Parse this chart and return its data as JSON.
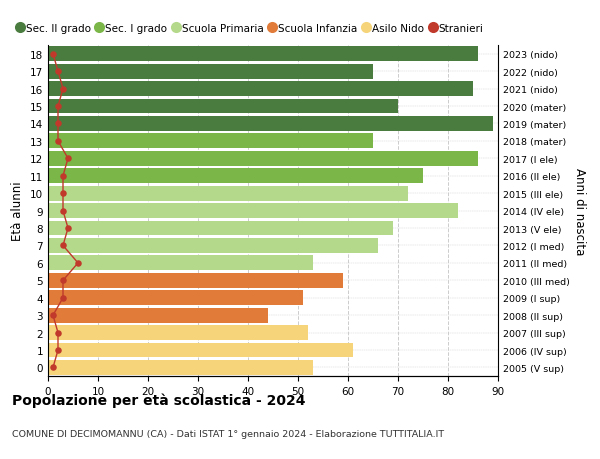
{
  "ages": [
    18,
    17,
    16,
    15,
    14,
    13,
    12,
    11,
    10,
    9,
    8,
    7,
    6,
    5,
    4,
    3,
    2,
    1,
    0
  ],
  "right_labels": [
    "2005 (V sup)",
    "2006 (IV sup)",
    "2007 (III sup)",
    "2008 (II sup)",
    "2009 (I sup)",
    "2010 (III med)",
    "2011 (II med)",
    "2012 (I med)",
    "2013 (V ele)",
    "2014 (IV ele)",
    "2015 (III ele)",
    "2016 (II ele)",
    "2017 (I ele)",
    "2018 (mater)",
    "2019 (mater)",
    "2020 (mater)",
    "2021 (nido)",
    "2022 (nido)",
    "2023 (nido)"
  ],
  "bar_values": [
    86,
    65,
    85,
    70,
    89,
    65,
    86,
    75,
    72,
    82,
    69,
    66,
    53,
    59,
    51,
    44,
    52,
    61,
    53
  ],
  "bar_colors": [
    "#4a7c3f",
    "#4a7c3f",
    "#4a7c3f",
    "#4a7c3f",
    "#4a7c3f",
    "#7ab648",
    "#7ab648",
    "#7ab648",
    "#b5d98a",
    "#b5d98a",
    "#b5d98a",
    "#b5d98a",
    "#b5d98a",
    "#e07b39",
    "#e07b39",
    "#e07b39",
    "#f5d47a",
    "#f5d47a",
    "#f5d47a"
  ],
  "stranieri_values": [
    1,
    2,
    3,
    2,
    2,
    2,
    4,
    3,
    3,
    3,
    4,
    3,
    6,
    3,
    3,
    1,
    2,
    2,
    1
  ],
  "stranieri_color": "#c0392b",
  "legend_items": [
    {
      "label": "Sec. II grado",
      "color": "#4a7c3f",
      "type": "patch"
    },
    {
      "label": "Sec. I grado",
      "color": "#7ab648",
      "type": "patch"
    },
    {
      "label": "Scuola Primaria",
      "color": "#b5d98a",
      "type": "patch"
    },
    {
      "label": "Scuola Infanzia",
      "color": "#e07b39",
      "type": "patch"
    },
    {
      "label": "Asilo Nido",
      "color": "#f5d47a",
      "type": "patch"
    },
    {
      "label": "Stranieri",
      "color": "#c0392b",
      "type": "dot"
    }
  ],
  "ylabel": "Età alunni",
  "right_ylabel": "Anni di nascita",
  "title": "Popolazione per età scolastica - 2024",
  "subtitle": "COMUNE DI DECIMOMANNU (CA) - Dati ISTAT 1° gennaio 2024 - Elaborazione TUTTITALIA.IT",
  "xlim": [
    0,
    90
  ],
  "xticks": [
    0,
    10,
    20,
    30,
    40,
    50,
    60,
    70,
    80,
    90
  ],
  "background_color": "#ffffff",
  "grid_color": "#cccccc"
}
